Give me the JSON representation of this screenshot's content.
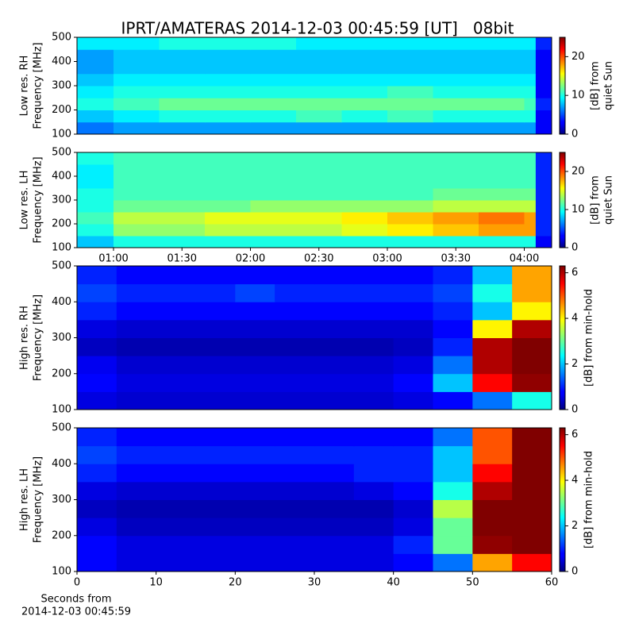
{
  "title": "IPRT/AMATERAS 2014-12-03 00:45:59 [UT]   08bit",
  "chart_data": [
    {
      "type": "heatmap",
      "colormap": "jet",
      "ylabel": [
        "Low res. RH",
        "Frequency [MHz]"
      ],
      "colorbar_label": [
        "[dB] from",
        "quiet Sun"
      ],
      "xlim": [
        44,
        252
      ],
      "ylim": [
        100,
        500
      ],
      "yticks": [
        100,
        200,
        300,
        400,
        500
      ],
      "clim": [
        0,
        25
      ],
      "cticks": [
        0,
        10,
        20
      ],
      "x_edges": [
        44,
        60,
        80,
        100,
        120,
        140,
        160,
        180,
        200,
        220,
        240,
        245,
        252
      ],
      "y_edges": [
        100,
        150,
        200,
        250,
        300,
        350,
        400,
        450,
        500
      ],
      "z": [
        [
          6,
          7,
          7,
          7,
          7,
          7,
          7,
          7,
          7,
          7,
          7,
          3
        ],
        [
          8,
          9,
          10,
          10,
          10,
          11,
          10,
          11,
          10,
          10,
          10,
          3
        ],
        [
          10,
          11,
          12,
          12,
          12,
          12,
          12,
          12,
          12,
          12,
          11,
          4
        ],
        [
          9,
          10,
          10,
          10,
          10,
          10,
          10,
          11,
          10,
          10,
          10,
          3
        ],
        [
          8,
          9,
          9,
          9,
          9,
          9,
          9,
          9,
          9,
          9,
          9,
          3
        ],
        [
          7,
          8,
          8,
          8,
          8,
          8,
          8,
          8,
          8,
          8,
          8,
          3
        ],
        [
          7,
          8,
          8,
          8,
          8,
          8,
          8,
          8,
          8,
          8,
          8,
          3
        ],
        [
          9,
          9,
          10,
          10,
          10,
          9,
          9,
          9,
          9,
          9,
          9,
          4
        ]
      ]
    },
    {
      "type": "heatmap",
      "colormap": "jet",
      "ylabel": [
        "Low res. LH",
        "Frequency [MHz]"
      ],
      "colorbar_label": [
        "[dB] from",
        "quiet Sun"
      ],
      "xlim": [
        44,
        252
      ],
      "ylim": [
        100,
        500
      ],
      "yticks": [
        100,
        200,
        300,
        400,
        500
      ],
      "clim": [
        0,
        25
      ],
      "cticks": [
        0,
        10,
        20
      ],
      "xticks": [
        {
          "value": 60,
          "label": "01:00"
        },
        {
          "value": 90,
          "label": "01:30"
        },
        {
          "value": 120,
          "label": "02:00"
        },
        {
          "value": 150,
          "label": "02:30"
        },
        {
          "value": 180,
          "label": "03:00"
        },
        {
          "value": 210,
          "label": "03:30"
        },
        {
          "value": 240,
          "label": "04:00"
        }
      ],
      "x_edges": [
        44,
        60,
        80,
        100,
        120,
        140,
        160,
        180,
        200,
        220,
        240,
        245,
        252
      ],
      "y_edges": [
        100,
        150,
        200,
        250,
        300,
        350,
        400,
        450,
        500
      ],
      "z": [
        [
          8,
          10,
          10,
          10,
          10,
          10,
          10,
          10,
          10,
          10,
          10,
          3
        ],
        [
          10,
          13,
          13,
          14,
          14,
          14,
          15,
          16,
          17,
          18,
          18,
          4
        ],
        [
          11,
          14,
          14,
          15,
          15,
          15,
          16,
          17,
          18,
          19,
          18,
          4
        ],
        [
          10,
          12,
          12,
          12,
          13,
          13,
          13,
          13,
          14,
          14,
          14,
          4
        ],
        [
          10,
          11,
          11,
          11,
          11,
          11,
          11,
          11,
          12,
          12,
          12,
          4
        ],
        [
          9,
          11,
          11,
          11,
          11,
          11,
          11,
          11,
          11,
          11,
          11,
          4
        ],
        [
          9,
          11,
          11,
          11,
          11,
          11,
          11,
          11,
          11,
          11,
          11,
          4
        ],
        [
          10,
          11,
          11,
          11,
          11,
          11,
          11,
          11,
          11,
          11,
          11,
          4
        ]
      ]
    },
    {
      "type": "heatmap",
      "colormap": "jet",
      "ylabel": [
        "High res. RH",
        "Frequency [MHz]"
      ],
      "colorbar_label": [
        "[dB] from min-hold"
      ],
      "xlim": [
        0,
        60
      ],
      "ylim": [
        100,
        500
      ],
      "yticks": [
        100,
        200,
        300,
        400,
        500
      ],
      "clim": [
        0,
        6.3
      ],
      "cticks": [
        0,
        2,
        4,
        6
      ],
      "x_edges": [
        0,
        5,
        10,
        15,
        20,
        25,
        30,
        35,
        40,
        45,
        50,
        55,
        60
      ],
      "y_edges": [
        100,
        150,
        200,
        250,
        300,
        350,
        400,
        450,
        500
      ],
      "z": [
        [
          0.6,
          0.5,
          0.5,
          0.5,
          0.5,
          0.5,
          0.5,
          0.5,
          0.6,
          0.8,
          1.5,
          2.5
        ],
        [
          0.8,
          0.6,
          0.6,
          0.6,
          0.6,
          0.6,
          0.6,
          0.6,
          0.8,
          2.0,
          5.5,
          6.2
        ],
        [
          0.7,
          0.5,
          0.5,
          0.5,
          0.5,
          0.5,
          0.5,
          0.5,
          0.6,
          1.5,
          6.0,
          6.3
        ],
        [
          0.4,
          0.3,
          0.3,
          0.3,
          0.3,
          0.3,
          0.3,
          0.3,
          0.4,
          1.0,
          6.0,
          6.3
        ],
        [
          0.6,
          0.5,
          0.5,
          0.5,
          0.5,
          0.5,
          0.5,
          0.5,
          0.5,
          0.8,
          4.0,
          6.0
        ],
        [
          1.0,
          0.8,
          0.8,
          0.8,
          0.8,
          0.8,
          0.8,
          0.8,
          0.8,
          1.0,
          2.0,
          4.0
        ],
        [
          1.2,
          1.0,
          1.0,
          1.0,
          1.2,
          1.0,
          1.0,
          1.0,
          1.0,
          1.2,
          2.5,
          4.5
        ],
        [
          1.0,
          0.8,
          0.8,
          0.8,
          0.8,
          0.8,
          0.8,
          0.8,
          0.8,
          1.0,
          2.0,
          4.5
        ]
      ]
    },
    {
      "type": "heatmap",
      "colormap": "jet",
      "ylabel": [
        "High res. LH",
        "Frequency [MHz]"
      ],
      "colorbar_label": [
        "[dB] from min-hold"
      ],
      "xlabel": [
        "Seconds from",
        "2014-12-03 00:45:59"
      ],
      "xlim": [
        0,
        60
      ],
      "ylim": [
        100,
        500
      ],
      "yticks": [
        100,
        200,
        300,
        400,
        500
      ],
      "xticks": [
        0,
        10,
        20,
        30,
        40,
        50,
        60
      ],
      "clim": [
        0,
        6.3
      ],
      "cticks": [
        0,
        2,
        4,
        6
      ],
      "x_edges": [
        0,
        5,
        10,
        15,
        20,
        25,
        30,
        35,
        40,
        45,
        50,
        55,
        60
      ],
      "y_edges": [
        100,
        150,
        200,
        250,
        300,
        350,
        400,
        450,
        500
      ],
      "z": [
        [
          0.8,
          0.6,
          0.6,
          0.6,
          0.6,
          0.6,
          0.6,
          0.6,
          0.8,
          1.5,
          4.5,
          5.5
        ],
        [
          0.8,
          0.6,
          0.6,
          0.6,
          0.6,
          0.6,
          0.6,
          0.6,
          1.0,
          3.0,
          6.2,
          6.3
        ],
        [
          0.6,
          0.4,
          0.4,
          0.4,
          0.4,
          0.4,
          0.4,
          0.4,
          0.6,
          3.0,
          6.3,
          6.3
        ],
        [
          0.4,
          0.3,
          0.3,
          0.3,
          0.3,
          0.3,
          0.3,
          0.3,
          0.5,
          3.5,
          6.3,
          6.3
        ],
        [
          0.6,
          0.5,
          0.5,
          0.5,
          0.5,
          0.5,
          0.5,
          0.6,
          0.8,
          2.5,
          6.0,
          6.3
        ],
        [
          1.0,
          0.8,
          0.8,
          0.8,
          0.8,
          0.8,
          0.8,
          1.0,
          1.0,
          2.0,
          5.5,
          6.3
        ],
        [
          1.2,
          1.0,
          1.0,
          1.0,
          1.0,
          1.0,
          1.0,
          1.0,
          1.0,
          2.0,
          5.0,
          6.3
        ],
        [
          1.0,
          0.8,
          0.8,
          0.8,
          0.8,
          0.8,
          0.8,
          0.8,
          0.8,
          1.5,
          5.0,
          6.3
        ]
      ]
    }
  ]
}
